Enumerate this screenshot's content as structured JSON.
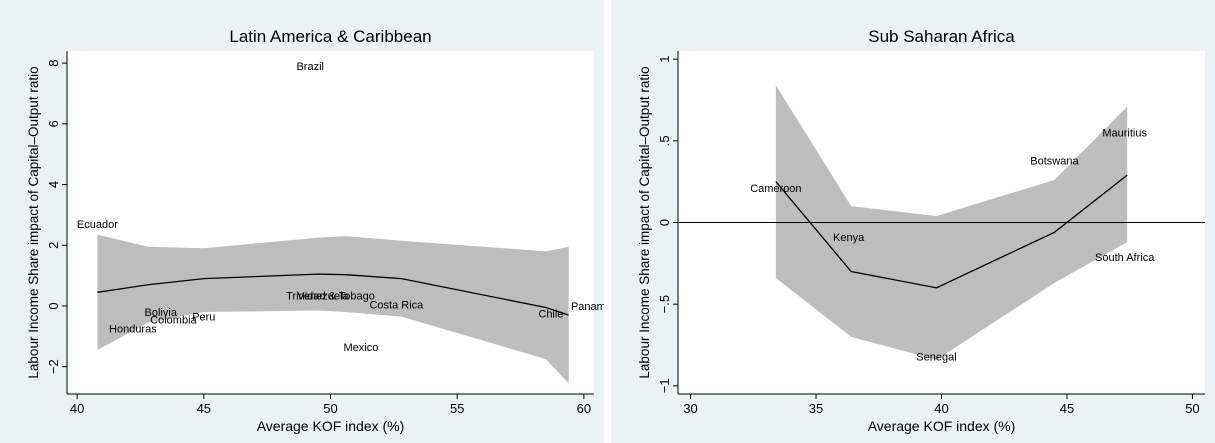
{
  "colors": {
    "panel_bg": "#eaf2f3",
    "plot_bg": "#ffffff",
    "band": "#bdbdbd",
    "line": "#000000"
  },
  "chart_data": [
    {
      "type": "scatter",
      "title": "Latin America & Caribbean",
      "xlabel": "Average KOF index (%)",
      "ylabel": "Labour Income Share impact of Capital–Output ratio",
      "xlim": [
        39.6,
        60.4
      ],
      "ylim": [
        -2.9,
        8.4
      ],
      "xticks": [
        40,
        45,
        50,
        55,
        60
      ],
      "yticks": [
        -2,
        0,
        2,
        4,
        6,
        8
      ],
      "xtick_labels": [
        "40",
        "45",
        "50",
        "55",
        "60"
      ],
      "ytick_labels": [
        "−2",
        "0",
        "2",
        "4",
        "6",
        "8"
      ],
      "zero_line": false,
      "grid": false,
      "points": [
        {
          "label": "Brazil",
          "x": 49.2,
          "y": 7.9
        },
        {
          "label": "Ecuador",
          "x": 40.8,
          "y": 2.7
        },
        {
          "label": "Trinidad & Tobago",
          "x": 50.0,
          "y": 0.35
        },
        {
          "label": "Venezuela",
          "x": 49.7,
          "y": 0.35
        },
        {
          "label": "Costa Rica",
          "x": 52.6,
          "y": 0.05
        },
        {
          "label": "Panama",
          "x": 60.3,
          "y": 0.0
        },
        {
          "label": "Chile",
          "x": 58.7,
          "y": -0.25
        },
        {
          "label": "Bolivia",
          "x": 43.3,
          "y": -0.2
        },
        {
          "label": "Peru",
          "x": 45.0,
          "y": -0.35
        },
        {
          "label": "Colombia",
          "x": 43.8,
          "y": -0.45
        },
        {
          "label": "Honduras",
          "x": 42.2,
          "y": -0.75
        },
        {
          "label": "Mexico",
          "x": 51.2,
          "y": -1.35
        }
      ],
      "fit_line": {
        "x": [
          40.8,
          42.8,
          45.0,
          49.5,
          50.6,
          52.8,
          58.5,
          59.4
        ],
        "y": [
          0.45,
          0.7,
          0.9,
          1.05,
          1.03,
          0.9,
          -0.05,
          -0.3
        ]
      },
      "ci_band": {
        "x": [
          40.8,
          42.8,
          45.0,
          49.5,
          50.6,
          52.8,
          58.5,
          59.4
        ],
        "upper": [
          2.35,
          1.95,
          1.9,
          2.25,
          2.3,
          2.15,
          1.8,
          1.95
        ],
        "lower": [
          -1.45,
          -0.55,
          -0.2,
          -0.15,
          -0.2,
          -0.35,
          -1.75,
          -2.55
        ]
      }
    },
    {
      "type": "scatter",
      "title": "Sub Saharan Africa",
      "xlabel": "Average KOF index (%)",
      "ylabel": "Labour Income Share impact of Capital–Output ratio",
      "xlim": [
        29.5,
        50.5
      ],
      "ylim": [
        -1.05,
        1.05
      ],
      "xticks": [
        30,
        35,
        40,
        45,
        50
      ],
      "yticks": [
        -1,
        -0.5,
        0,
        0.5,
        1
      ],
      "xtick_labels": [
        "30",
        "35",
        "40",
        "45",
        "50"
      ],
      "ytick_labels": [
        "−1",
        "−.5",
        "0",
        ".5",
        "1"
      ],
      "zero_line": true,
      "grid": false,
      "points": [
        {
          "label": "Cameroon",
          "x": 33.4,
          "y": 0.21
        },
        {
          "label": "Kenya",
          "x": 36.3,
          "y": -0.09
        },
        {
          "label": "Senegal",
          "x": 39.8,
          "y": -0.82
        },
        {
          "label": "Botswana",
          "x": 44.5,
          "y": 0.38
        },
        {
          "label": "Mauritius",
          "x": 47.3,
          "y": 0.55
        },
        {
          "label": "South Africa",
          "x": 47.3,
          "y": -0.21
        }
      ],
      "fit_line": {
        "x": [
          33.4,
          36.4,
          39.8,
          44.5,
          47.4
        ],
        "y": [
          0.25,
          -0.3,
          -0.4,
          -0.06,
          0.29
        ]
      },
      "ci_band": {
        "x": [
          33.4,
          36.4,
          39.8,
          44.5,
          47.4
        ],
        "upper": [
          0.84,
          0.1,
          0.04,
          0.26,
          0.71
        ],
        "lower": [
          -0.34,
          -0.7,
          -0.84,
          -0.37,
          -0.12
        ]
      }
    }
  ]
}
